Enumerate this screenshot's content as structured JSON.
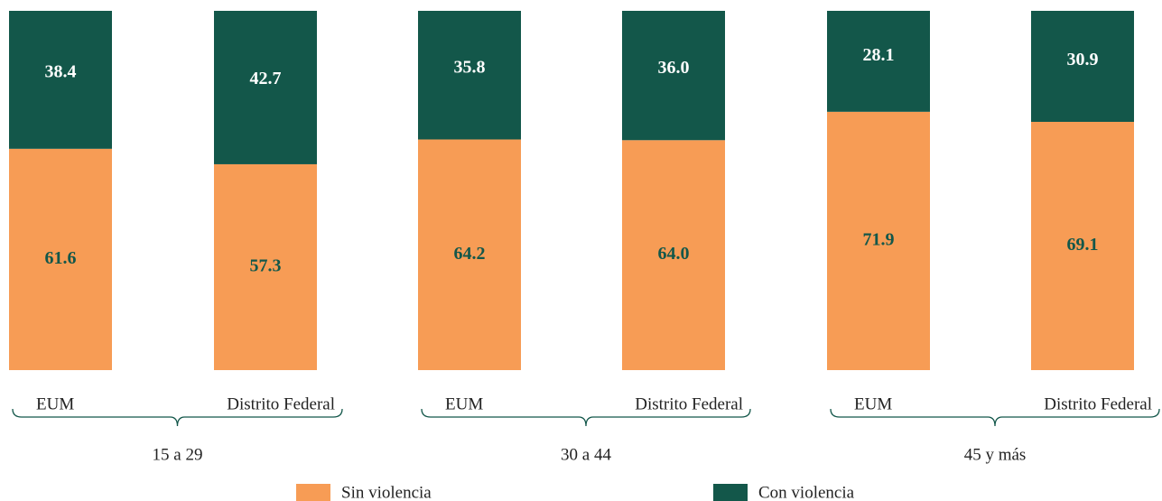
{
  "chart_data": {
    "type": "stacked_bar",
    "categories": [
      "EUM",
      "Distrito Federal",
      "EUM",
      "Distrito Federal",
      "EUM",
      "Distrito Federal"
    ],
    "groups": [
      "15 a 29",
      "30 a 44",
      "45 y más"
    ],
    "series": [
      {
        "name": "Sin violencia",
        "color": "#F79C55",
        "label_color": "#13574A",
        "values": [
          61.6,
          57.3,
          64.2,
          64.0,
          71.9,
          69.1
        ],
        "value_labels": [
          "61.6",
          "57.3",
          "64.2",
          "64.0",
          "71.9",
          "69.1"
        ]
      },
      {
        "name": "Con violencia",
        "color": "#13574A",
        "label_color": "#FFFFFF",
        "values": [
          38.4,
          42.7,
          35.8,
          36.0,
          28.1,
          30.9
        ],
        "value_labels": [
          "38.4",
          "42.7",
          "35.8",
          "36.0",
          "28.1",
          "30.9"
        ]
      }
    ],
    "legend": "bottom"
  }
}
